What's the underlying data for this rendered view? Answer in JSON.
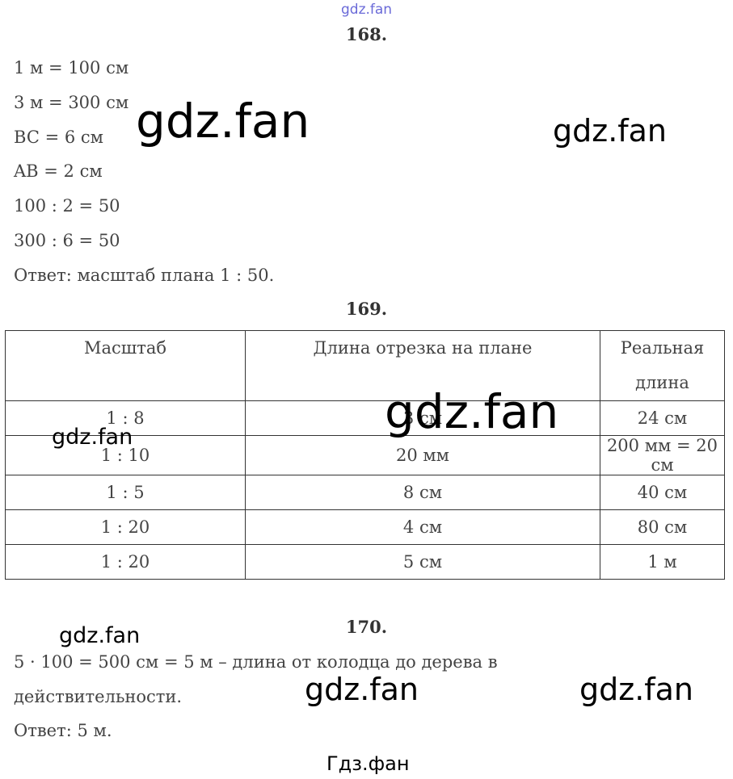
{
  "watermarks": {
    "top": "gdz.fan",
    "main": "gdz.fan",
    "bottom": "Гдз.фан"
  },
  "p168": {
    "title": "168.",
    "lines": [
      "1 м = 100 см",
      "3 м = 300 см",
      "BC = 6 см",
      "AB = 2 см",
      "100 : 2 = 50",
      "300 : 6 = 50",
      "Ответ: масштаб плана 1 : 50."
    ]
  },
  "p169": {
    "title": "169.",
    "headers": [
      "Масштаб",
      "Длина отрезка на плане",
      "Реальная длина"
    ],
    "rows": [
      [
        "1 : 8",
        "3 см",
        "24 см"
      ],
      [
        "1 : 10",
        "20 мм",
        "200 мм = 20 см"
      ],
      [
        "1 : 5",
        "8 см",
        "40 см"
      ],
      [
        "1 : 20",
        "4 см",
        "80 см"
      ],
      [
        "1 : 20",
        "5 см",
        "1 м"
      ]
    ]
  },
  "p170": {
    "title": "170.",
    "lines": [
      "5 · 100 = 500 см = 5 м – длина от колодца до дерева в",
      "действительности.",
      "Ответ: 5 м."
    ]
  }
}
